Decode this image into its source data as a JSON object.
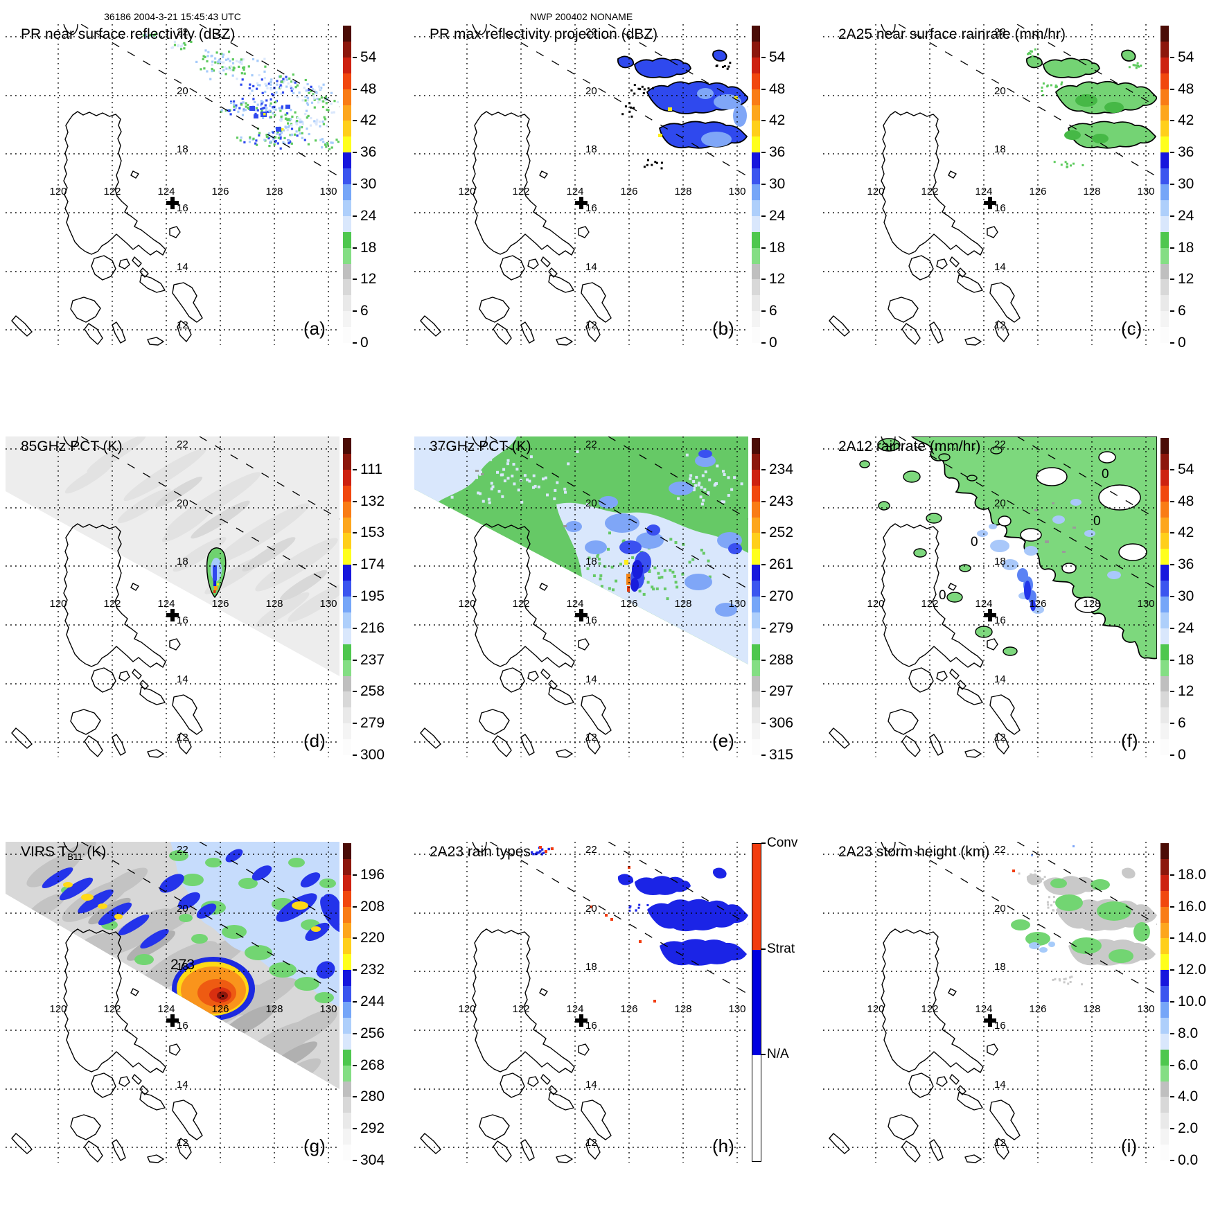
{
  "header": {
    "left": "36186 2004-3-21 15:45:43 UTC",
    "center": "NWP 200402 NONAME"
  },
  "map": {
    "lon_labels": [
      "120",
      "122",
      "124",
      "126",
      "128",
      "130"
    ],
    "lat_labels": [
      "22",
      "20",
      "18",
      "16",
      "14",
      "12"
    ],
    "cross_marker": {
      "shape": "plus",
      "color": "#000000"
    }
  },
  "palette": {
    "pale_blue": "#d9e7fc",
    "light_blue": "#a6cbfa",
    "mid_blue": "#7fa6f7",
    "blue": "#2f49ee",
    "dark_blue": "#1717dd",
    "navy": "#1c2ae0",
    "light_green": "#8fe08f",
    "green": "#5ecb5e",
    "dark_green": "#46b846",
    "yellow": "#ffee18",
    "gold": "#ffd916",
    "orange": "#fb9a1c",
    "deep_orange": "#f25c12",
    "red": "#e0300f",
    "dark_red": "#8c170c",
    "maroon": "#4b0c06",
    "swath_gray": "#ededed",
    "virs_gray": "#d8d8d8",
    "mottle_gray": "#c3c3c3",
    "gray": "#c9c9c9",
    "dark_gray": "#9a9a9a",
    "white": "#ffffff",
    "black": "#000000"
  },
  "colorbar_colors_bottom_up": [
    "#fcfcfc",
    "#f4f4f4",
    "#e9e9e9",
    "#d8d8d8",
    "#bfbfbf",
    "#84de84",
    "#4ec74e",
    "#d9e7fc",
    "#aecffb",
    "#76a6f8",
    "#3b55ef",
    "#1717dd",
    "#ffff1c",
    "#ffcf1b",
    "#fda61d",
    "#f97c16",
    "#f1470e",
    "#cd2110",
    "#8c170c",
    "#4b0c06"
  ],
  "panels": [
    {
      "id": "a",
      "title": "PR near surface reflectivity (dBZ)",
      "title_sub": "",
      "title_suffix": "",
      "letter": "(a)",
      "overlay": "pr_speckle",
      "colorbar": {
        "type": "standard",
        "ticks_bottom_up": [
          "0",
          "6",
          "12",
          "18",
          "24",
          "30",
          "36",
          "42",
          "48",
          "54"
        ]
      }
    },
    {
      "id": "b",
      "title": "PR max reflectivity projection (dBZ)",
      "title_sub": "",
      "title_suffix": "",
      "letter": "(b)",
      "overlay": "pr_outline_blue",
      "colorbar": {
        "type": "standard",
        "ticks_bottom_up": [
          "0",
          "6",
          "12",
          "18",
          "24",
          "30",
          "36",
          "42",
          "48",
          "54"
        ]
      }
    },
    {
      "id": "c",
      "title": "2A25 near surface rainrate (mm/hr)",
      "title_sub": "",
      "title_suffix": "",
      "letter": "(c)",
      "overlay": "rain_green",
      "colorbar": {
        "type": "standard",
        "ticks_bottom_up": [
          "0",
          "6",
          "12",
          "18",
          "24",
          "30",
          "36",
          "42",
          "48",
          "54"
        ]
      }
    },
    {
      "id": "d",
      "title": "85GHz PCT (K)",
      "title_sub": "",
      "title_suffix": "",
      "letter": "(d)",
      "overlay": "tmi85",
      "colorbar": {
        "type": "standard",
        "ticks_bottom_up": [
          "300",
          "279",
          "258",
          "237",
          "216",
          "195",
          "174",
          "153",
          "132",
          "111"
        ]
      }
    },
    {
      "id": "e",
      "title": "37GHz PCT (K)",
      "title_sub": "",
      "title_suffix": "",
      "letter": "(e)",
      "overlay": "tmi37",
      "colorbar": {
        "type": "standard",
        "ticks_bottom_up": [
          "315",
          "306",
          "297",
          "288",
          "279",
          "270",
          "261",
          "252",
          "243",
          "234"
        ]
      }
    },
    {
      "id": "f",
      "title": "2A12 rainrate (mm/hr)",
      "title_sub": "",
      "title_suffix": "",
      "letter": "(f)",
      "overlay": "tmi_rain",
      "contour_labels": [
        "0",
        "0",
        "0",
        "0"
      ],
      "colorbar": {
        "type": "standard",
        "ticks_bottom_up": [
          "0",
          "6",
          "12",
          "18",
          "24",
          "30",
          "36",
          "42",
          "48",
          "54"
        ]
      }
    },
    {
      "id": "g",
      "title": "VIRS T",
      "title_sub": "B11",
      "title_suffix": " (K)",
      "letter": "(g)",
      "overlay": "virs",
      "contour_labels": [
        "273"
      ],
      "colorbar": {
        "type": "standard",
        "ticks_bottom_up": [
          "304",
          "292",
          "280",
          "268",
          "256",
          "244",
          "232",
          "220",
          "208",
          "196"
        ]
      }
    },
    {
      "id": "h",
      "title": "2A23 rain types",
      "title_sub": "",
      "title_suffix": "",
      "letter": "(h)",
      "overlay": "raintype",
      "colorbar": {
        "type": "raintype",
        "segments": [
          {
            "label": "Conv",
            "color": "#f23c0f"
          },
          {
            "label": "Strat",
            "color": "#0000e0"
          },
          {
            "label": "N/A",
            "color": "#ffffff"
          }
        ]
      }
    },
    {
      "id": "i",
      "title": "2A23 storm height (km)",
      "title_sub": "",
      "title_suffix": "",
      "letter": "(i)",
      "overlay": "storm_height",
      "colorbar": {
        "type": "standard",
        "ticks_bottom_up": [
          "0.0",
          "2.0",
          "4.0",
          "6.0",
          "8.0",
          "10.0",
          "12.0",
          "14.0",
          "16.0",
          "18.0"
        ]
      }
    }
  ]
}
